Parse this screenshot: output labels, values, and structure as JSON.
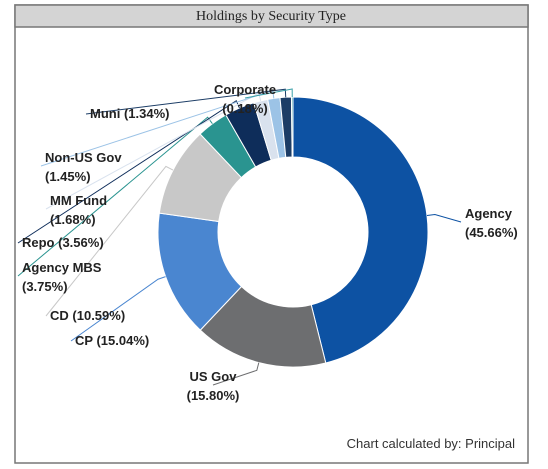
{
  "chart_data": {
    "type": "donut",
    "title": "Holdings by Security Type",
    "categories": [
      "Agency",
      "US Gov",
      "CP",
      "CD",
      "Agency MBS",
      "Repo",
      "MM Fund",
      "Non-US Gov",
      "Muni",
      "Corporate"
    ],
    "values": [
      45.66,
      15.8,
      15.04,
      10.59,
      3.75,
      3.56,
      1.68,
      1.45,
      1.34,
      0.18
    ],
    "value_labels": [
      "(45.66%)",
      "(15.80%)",
      "(15.04%)",
      "(10.59%)",
      "(3.75%)",
      "(3.56%)",
      "(1.68%)",
      "(1.45%)",
      "(1.34%)",
      "(0.18%)"
    ],
    "colors": [
      "#0d52a3",
      "#6d6e70",
      "#4a86d0",
      "#c8c8c8",
      "#2a9490",
      "#0e2d5a",
      "#d9e2ee",
      "#9cc3e6",
      "#1c3d66",
      "#3aa0a8"
    ],
    "footnote": "Chart calculated by: Principal"
  }
}
